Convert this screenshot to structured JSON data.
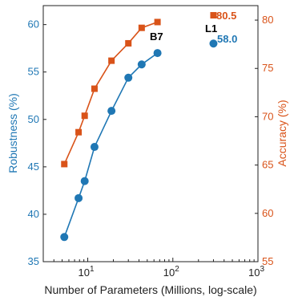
{
  "chart_data": {
    "type": "line",
    "xlabel": "Number of Parameters (Millions, log-scale)",
    "x_scale": "log",
    "xlim": [
      3,
      1000
    ],
    "x_ticks": [
      {
        "value": 10,
        "base": "10",
        "exp": "1"
      },
      {
        "value": 100,
        "base": "10",
        "exp": "2"
      },
      {
        "value": 1000,
        "base": "10",
        "exp": "3"
      }
    ],
    "y_left": {
      "label": "Robustness (%)",
      "lim": [
        35,
        62
      ],
      "ticks": [
        35,
        40,
        45,
        50,
        55,
        60
      ],
      "color": "#1f77b4"
    },
    "y_right": {
      "label": "Accuracy (%)",
      "lim": [
        55,
        81.5
      ],
      "ticks": [
        55,
        60,
        65,
        70,
        75,
        80
      ],
      "color": "#d95319"
    },
    "series": [
      {
        "axis": "right",
        "marker": "square",
        "color": "#d95319",
        "x": [
          5.3,
          7.8,
          9.2,
          12,
          19,
          30,
          43,
          66
        ],
        "y": [
          65.1,
          68.4,
          70.1,
          72.9,
          75.8,
          77.6,
          79.2,
          79.8
        ]
      },
      {
        "axis": "left",
        "marker": "circle",
        "color": "#1f77b4",
        "x": [
          5.3,
          7.8,
          9.2,
          12,
          19,
          30,
          43,
          66
        ],
        "y": [
          37.6,
          41.7,
          43.5,
          47.1,
          50.9,
          54.4,
          55.8,
          57.0
        ]
      }
    ],
    "annotations": {
      "b7": "B7",
      "l1": "L1",
      "l1_accuracy": "80.5",
      "l1_robustness": "58.0"
    },
    "l1_points": {
      "x": 300,
      "accuracy": 80.5,
      "robustness": 58.0
    }
  }
}
